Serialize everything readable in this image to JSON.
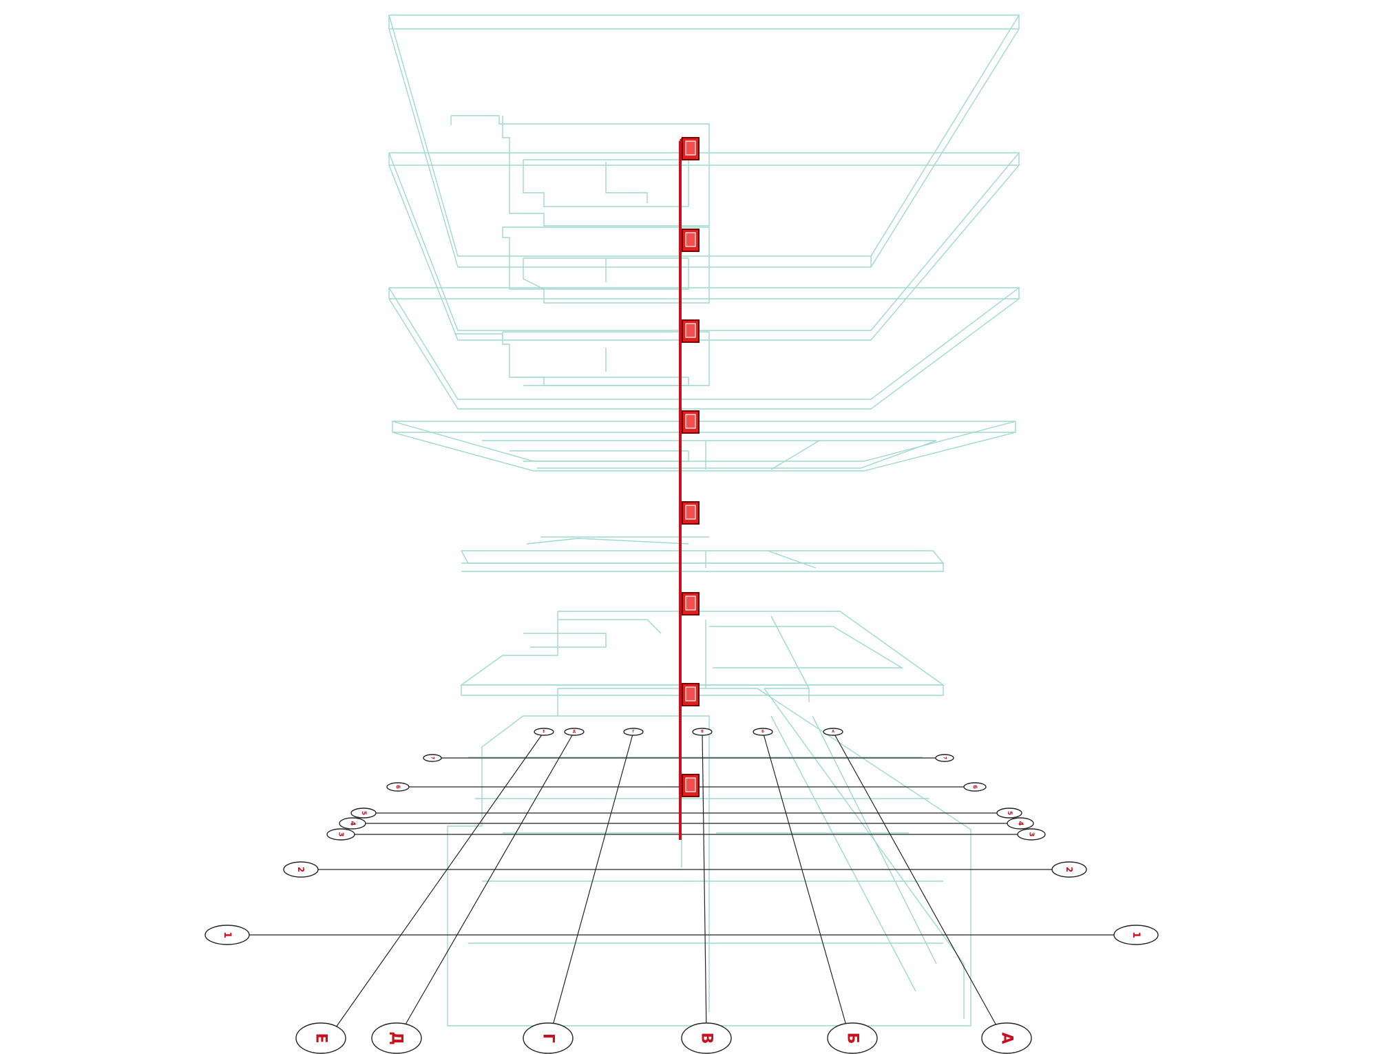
{
  "colors": {
    "floor_lines": "#9fd9cd",
    "riser": "#c8101e",
    "label_text": "#c8101e",
    "axis_lines": "#222222"
  },
  "grid": {
    "letters": [
      "Е",
      "Д",
      "Г",
      "В",
      "Б",
      "А"
    ],
    "numbers_left": [
      "1",
      "2",
      "3",
      "4",
      "5",
      "6",
      "7"
    ],
    "numbers_right": [
      "1",
      "2",
      "3",
      "4",
      "5",
      "6",
      "7"
    ],
    "top_marks": [
      "Е",
      "Д",
      "Г",
      "В",
      "Б",
      "А"
    ]
  },
  "riser": {
    "fixture_icon": "fan-coil-unit-icon",
    "fixture_count": 8
  }
}
